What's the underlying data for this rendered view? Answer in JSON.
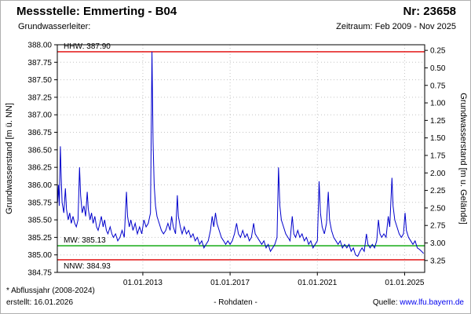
{
  "header": {
    "title": "Messstelle: Emmerting - B04",
    "number": "Nr: 23658",
    "subtitle_left": "Grundwasserleiter:",
    "subtitle_right": "Zeitraum: Feb 2009 - Nov 2025"
  },
  "footer": {
    "note1": "* Abflussjahr (2008-2024)",
    "note2": "erstellt: 16.01.2026",
    "center": "- Rohdaten -",
    "source_label": "Quelle:",
    "source_link": "www.lfu.bayern.de"
  },
  "colors": {
    "series": "#0000cc",
    "hhw_nnw": "#e00000",
    "mw": "#00a400",
    "grid": "#c3c3c3",
    "link": "#0000ee"
  },
  "chart_data": {
    "type": "line",
    "title": "",
    "xlabel": "",
    "ylabel_left": "Grundwasserstand [m ü. NN]",
    "ylabel_right": "Grundwasserstand [m u. Gelände]",
    "x_range": [
      2009.08,
      2025.92
    ],
    "y_range": [
      384.75,
      388.0
    ],
    "grid": true,
    "ground_elevation": 388.17,
    "y_left_ticks": [
      {
        "v": 388.0,
        "label": "388.00"
      },
      {
        "v": 387.75,
        "label": "387.75"
      },
      {
        "v": 387.5,
        "label": "387.50"
      },
      {
        "v": 387.25,
        "label": "387.25"
      },
      {
        "v": 387.0,
        "label": "387.00"
      },
      {
        "v": 386.75,
        "label": "386.75"
      },
      {
        "v": 386.5,
        "label": "386.50"
      },
      {
        "v": 386.25,
        "label": "386.25"
      },
      {
        "v": 386.0,
        "label": "386.00"
      },
      {
        "v": 385.75,
        "label": "385.75"
      },
      {
        "v": 385.5,
        "label": "385.50"
      },
      {
        "v": 385.25,
        "label": "385.25"
      },
      {
        "v": 385.0,
        "label": "385.00"
      },
      {
        "v": 384.75,
        "label": "384.75"
      }
    ],
    "y_right_ticks": [
      {
        "d": 0.25,
        "label": "0.25"
      },
      {
        "d": 0.5,
        "label": "0.50"
      },
      {
        "d": 0.75,
        "label": "0.75"
      },
      {
        "d": 1.0,
        "label": "1.00"
      },
      {
        "d": 1.25,
        "label": "1.25"
      },
      {
        "d": 1.5,
        "label": "1.50"
      },
      {
        "d": 1.75,
        "label": "1.75"
      },
      {
        "d": 2.0,
        "label": "2.00"
      },
      {
        "d": 2.25,
        "label": "2.25"
      },
      {
        "d": 2.5,
        "label": "2.50"
      },
      {
        "d": 2.75,
        "label": "2.75"
      },
      {
        "d": 3.0,
        "label": "3.00"
      },
      {
        "d": 3.25,
        "label": "3.25"
      }
    ],
    "x_ticks": [
      {
        "t": 2013.0,
        "label": "01.01.2013"
      },
      {
        "t": 2017.0,
        "label": "01.01.2017"
      },
      {
        "t": 2021.0,
        "label": "01.01.2021"
      },
      {
        "t": 2025.0,
        "label": "01.01.2025"
      }
    ],
    "reference_lines": [
      {
        "name": "HHW",
        "label": "HHW: 387.90",
        "value": 387.9,
        "color": "#e00000",
        "label_below": false
      },
      {
        "name": "MW",
        "label": "MW: 385.13",
        "value": 385.13,
        "color": "#00a400",
        "label_below": false
      },
      {
        "name": "NNW",
        "label": "NNW: 384.93",
        "value": 384.93,
        "color": "#e00000",
        "label_below": true
      }
    ],
    "series": [
      {
        "name": "Rohdaten",
        "color": "#0000cc",
        "points": [
          [
            2009.09,
            385.75
          ],
          [
            2009.13,
            386.0
          ],
          [
            2009.17,
            385.7
          ],
          [
            2009.22,
            386.55
          ],
          [
            2009.26,
            386.1
          ],
          [
            2009.3,
            385.75
          ],
          [
            2009.38,
            385.6
          ],
          [
            2009.45,
            385.95
          ],
          [
            2009.5,
            385.65
          ],
          [
            2009.58,
            385.5
          ],
          [
            2009.65,
            385.6
          ],
          [
            2009.72,
            385.45
          ],
          [
            2009.8,
            385.55
          ],
          [
            2009.88,
            385.45
          ],
          [
            2009.95,
            385.4
          ],
          [
            2010.03,
            385.5
          ],
          [
            2010.1,
            386.25
          ],
          [
            2010.15,
            385.85
          ],
          [
            2010.22,
            385.6
          ],
          [
            2010.3,
            385.7
          ],
          [
            2010.38,
            385.55
          ],
          [
            2010.45,
            385.9
          ],
          [
            2010.5,
            385.65
          ],
          [
            2010.58,
            385.5
          ],
          [
            2010.65,
            385.6
          ],
          [
            2010.72,
            385.45
          ],
          [
            2010.8,
            385.55
          ],
          [
            2010.88,
            385.4
          ],
          [
            2010.95,
            385.35
          ],
          [
            2011.03,
            385.45
          ],
          [
            2011.1,
            385.55
          ],
          [
            2011.18,
            385.4
          ],
          [
            2011.25,
            385.5
          ],
          [
            2011.33,
            385.35
          ],
          [
            2011.4,
            385.3
          ],
          [
            2011.5,
            385.4
          ],
          [
            2011.58,
            385.3
          ],
          [
            2011.65,
            385.25
          ],
          [
            2011.75,
            385.3
          ],
          [
            2011.85,
            385.2
          ],
          [
            2011.95,
            385.25
          ],
          [
            2012.05,
            385.35
          ],
          [
            2012.15,
            385.25
          ],
          [
            2012.25,
            385.9
          ],
          [
            2012.3,
            385.55
          ],
          [
            2012.38,
            385.4
          ],
          [
            2012.45,
            385.5
          ],
          [
            2012.55,
            385.35
          ],
          [
            2012.65,
            385.45
          ],
          [
            2012.75,
            385.3
          ],
          [
            2012.85,
            385.4
          ],
          [
            2012.95,
            385.3
          ],
          [
            2013.05,
            385.5
          ],
          [
            2013.15,
            385.4
          ],
          [
            2013.25,
            385.45
          ],
          [
            2013.35,
            385.6
          ],
          [
            2013.42,
            387.9
          ],
          [
            2013.47,
            386.6
          ],
          [
            2013.52,
            386.0
          ],
          [
            2013.58,
            385.7
          ],
          [
            2013.65,
            385.55
          ],
          [
            2013.75,
            385.45
          ],
          [
            2013.85,
            385.35
          ],
          [
            2013.95,
            385.3
          ],
          [
            2014.05,
            385.35
          ],
          [
            2014.15,
            385.45
          ],
          [
            2014.25,
            385.35
          ],
          [
            2014.32,
            385.55
          ],
          [
            2014.4,
            385.4
          ],
          [
            2014.5,
            385.3
          ],
          [
            2014.58,
            385.85
          ],
          [
            2014.63,
            385.55
          ],
          [
            2014.72,
            385.4
          ],
          [
            2014.8,
            385.3
          ],
          [
            2014.9,
            385.4
          ],
          [
            2015.0,
            385.3
          ],
          [
            2015.1,
            385.35
          ],
          [
            2015.2,
            385.25
          ],
          [
            2015.3,
            385.3
          ],
          [
            2015.4,
            385.2
          ],
          [
            2015.5,
            385.25
          ],
          [
            2015.6,
            385.15
          ],
          [
            2015.7,
            385.2
          ],
          [
            2015.8,
            385.1
          ],
          [
            2015.9,
            385.15
          ],
          [
            2016.0,
            385.2
          ],
          [
            2016.1,
            385.35
          ],
          [
            2016.18,
            385.55
          ],
          [
            2016.25,
            385.4
          ],
          [
            2016.33,
            385.6
          ],
          [
            2016.4,
            385.45
          ],
          [
            2016.5,
            385.35
          ],
          [
            2016.6,
            385.25
          ],
          [
            2016.7,
            385.2
          ],
          [
            2016.8,
            385.15
          ],
          [
            2016.9,
            385.2
          ],
          [
            2017.0,
            385.15
          ],
          [
            2017.1,
            385.2
          ],
          [
            2017.2,
            385.3
          ],
          [
            2017.3,
            385.45
          ],
          [
            2017.38,
            385.3
          ],
          [
            2017.48,
            385.25
          ],
          [
            2017.58,
            385.35
          ],
          [
            2017.68,
            385.25
          ],
          [
            2017.78,
            385.3
          ],
          [
            2017.88,
            385.2
          ],
          [
            2017.98,
            385.25
          ],
          [
            2018.08,
            385.45
          ],
          [
            2018.15,
            385.3
          ],
          [
            2018.25,
            385.25
          ],
          [
            2018.35,
            385.2
          ],
          [
            2018.45,
            385.15
          ],
          [
            2018.55,
            385.2
          ],
          [
            2018.65,
            385.1
          ],
          [
            2018.75,
            385.15
          ],
          [
            2018.85,
            385.05
          ],
          [
            2018.95,
            385.1
          ],
          [
            2019.05,
            385.15
          ],
          [
            2019.15,
            385.25
          ],
          [
            2019.22,
            386.25
          ],
          [
            2019.28,
            385.7
          ],
          [
            2019.35,
            385.5
          ],
          [
            2019.45,
            385.4
          ],
          [
            2019.55,
            385.3
          ],
          [
            2019.65,
            385.25
          ],
          [
            2019.75,
            385.2
          ],
          [
            2019.85,
            385.55
          ],
          [
            2019.92,
            385.3
          ],
          [
            2020.0,
            385.25
          ],
          [
            2020.1,
            385.35
          ],
          [
            2020.2,
            385.25
          ],
          [
            2020.3,
            385.3
          ],
          [
            2020.4,
            385.2
          ],
          [
            2020.5,
            385.25
          ],
          [
            2020.6,
            385.15
          ],
          [
            2020.7,
            385.2
          ],
          [
            2020.8,
            385.1
          ],
          [
            2020.9,
            385.15
          ],
          [
            2021.0,
            385.2
          ],
          [
            2021.08,
            386.05
          ],
          [
            2021.14,
            385.6
          ],
          [
            2021.22,
            385.4
          ],
          [
            2021.32,
            385.3
          ],
          [
            2021.42,
            385.45
          ],
          [
            2021.5,
            385.9
          ],
          [
            2021.56,
            385.5
          ],
          [
            2021.65,
            385.35
          ],
          [
            2021.75,
            385.25
          ],
          [
            2021.85,
            385.2
          ],
          [
            2021.95,
            385.15
          ],
          [
            2022.05,
            385.2
          ],
          [
            2022.15,
            385.1
          ],
          [
            2022.25,
            385.15
          ],
          [
            2022.35,
            385.1
          ],
          [
            2022.45,
            385.15
          ],
          [
            2022.55,
            385.05
          ],
          [
            2022.65,
            385.1
          ],
          [
            2022.75,
            385.0
          ],
          [
            2022.85,
            384.98
          ],
          [
            2022.95,
            385.05
          ],
          [
            2023.05,
            385.1
          ],
          [
            2023.15,
            385.05
          ],
          [
            2023.25,
            385.3
          ],
          [
            2023.32,
            385.15
          ],
          [
            2023.42,
            385.1
          ],
          [
            2023.52,
            385.15
          ],
          [
            2023.62,
            385.1
          ],
          [
            2023.72,
            385.2
          ],
          [
            2023.8,
            385.5
          ],
          [
            2023.87,
            385.3
          ],
          [
            2023.95,
            385.25
          ],
          [
            2024.05,
            385.3
          ],
          [
            2024.15,
            385.25
          ],
          [
            2024.25,
            385.55
          ],
          [
            2024.32,
            385.4
          ],
          [
            2024.42,
            386.1
          ],
          [
            2024.47,
            385.7
          ],
          [
            2024.55,
            385.5
          ],
          [
            2024.65,
            385.4
          ],
          [
            2024.75,
            385.3
          ],
          [
            2024.85,
            385.25
          ],
          [
            2024.95,
            385.3
          ],
          [
            2025.02,
            385.6
          ],
          [
            2025.08,
            385.35
          ],
          [
            2025.18,
            385.25
          ],
          [
            2025.28,
            385.2
          ],
          [
            2025.38,
            385.15
          ],
          [
            2025.48,
            385.2
          ],
          [
            2025.58,
            385.1
          ],
          [
            2025.68,
            385.08
          ],
          [
            2025.78,
            385.05
          ],
          [
            2025.87,
            385.02
          ]
        ]
      }
    ]
  }
}
